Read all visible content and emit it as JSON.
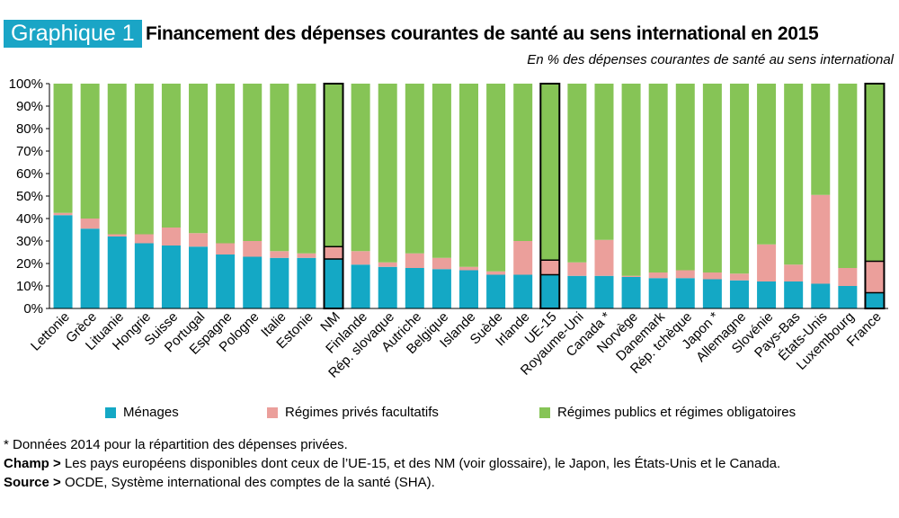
{
  "badge": "Graphique 1",
  "title": "Financement des dépenses courantes de santé au sens international en 2015",
  "subtitle": "En % des dépenses courantes de santé au sens international",
  "colors": {
    "menages": "#14a8c5",
    "prives": "#eb9f9b",
    "publics": "#86c456",
    "outline": "#000000"
  },
  "chart_data": {
    "type": "bar",
    "stacked": true,
    "ylim": [
      0,
      100
    ],
    "yticks": [
      "0%",
      "10%",
      "20%",
      "30%",
      "40%",
      "50%",
      "60%",
      "70%",
      "80%",
      "90%",
      "100%"
    ],
    "categories": [
      "Lettonie",
      "Grèce",
      "Lituanie",
      "Hongrie",
      "Suisse",
      "Portugal",
      "Espagne",
      "Pologne",
      "Italie",
      "Estonie",
      "NM",
      "Finlande",
      "Rép. slovaque",
      "Autriche",
      "Belgique",
      "Islande",
      "Suède",
      "Irlande",
      "UE-15",
      "Royaume-Uni",
      "Canada *",
      "Norvège",
      "Danemark",
      "Rép. tchèque",
      "Japon *",
      "Allemagne",
      "Slovénie",
      "Pays-Bas",
      "États-Unis",
      "Luxembourg",
      "France"
    ],
    "highlighted": [
      "NM",
      "UE-15",
      "France"
    ],
    "series": [
      {
        "name": "Ménages",
        "values": [
          41.5,
          35.5,
          32,
          29,
          28,
          27.5,
          24,
          23,
          22.5,
          22.5,
          22,
          19.5,
          18.5,
          18,
          17.5,
          17,
          15,
          15,
          15,
          14.5,
          14.5,
          14,
          13.5,
          13.5,
          13,
          12.5,
          12,
          12,
          11,
          10,
          7
        ]
      },
      {
        "name": "Régimes privés facultatifs",
        "values": [
          1,
          4.5,
          1,
          4,
          8,
          6,
          5,
          7,
          3,
          2,
          5.5,
          6,
          2,
          6.5,
          5,
          1.5,
          1.5,
          15,
          6.5,
          6,
          16,
          0.5,
          2.5,
          3.5,
          3,
          3,
          16.5,
          7.5,
          39.5,
          8,
          14
        ]
      },
      {
        "name": "Régimes publics et régimes obligatoires",
        "values": [
          57.5,
          60,
          67,
          67,
          64,
          66.5,
          71,
          70,
          74.5,
          75.5,
          72.5,
          74.5,
          79.5,
          75.5,
          77.5,
          81.5,
          83.5,
          70,
          78.5,
          79.5,
          69.5,
          85.5,
          84,
          83,
          84,
          84.5,
          71.5,
          80.5,
          49.5,
          82,
          79
        ]
      }
    ]
  },
  "legend": {
    "menages": "Ménages",
    "prives": "Régimes privés facultatifs",
    "publics": "Régimes publics et régimes obligatoires"
  },
  "notes": {
    "star": "* Données 2014 pour la répartition des dépenses privées.",
    "champ_label": "Champ >",
    "champ_text": " Les pays européens disponibles dont ceux de l’UE-15, et des NM (voir glossaire), le Japon, les États-Unis et le Canada.",
    "source_label": "Source >",
    "source_text": " OCDE, Système international des comptes de la santé (SHA)."
  }
}
